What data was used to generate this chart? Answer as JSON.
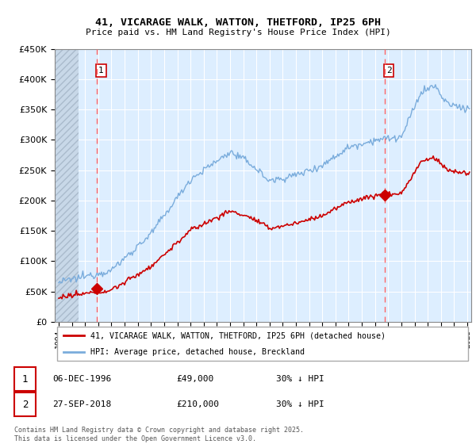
{
  "title_line1": "41, VICARAGE WALK, WATTON, THETFORD, IP25 6PH",
  "title_line2": "Price paid vs. HM Land Registry's House Price Index (HPI)",
  "legend_label1": "41, VICARAGE WALK, WATTON, THETFORD, IP25 6PH (detached house)",
  "legend_label2": "HPI: Average price, detached house, Breckland",
  "sale1_date": "06-DEC-1996",
  "sale1_price": "£49,000",
  "sale1_hpi": "30% ↓ HPI",
  "sale2_date": "27-SEP-2018",
  "sale2_price": "£210,000",
  "sale2_hpi": "30% ↓ HPI",
  "footer": "Contains HM Land Registry data © Crown copyright and database right 2025.\nThis data is licensed under the Open Government Licence v3.0.",
  "sale1_year": 1996.92,
  "sale2_year": 2018.75,
  "sale1_price_val": 49000,
  "sale2_price_val": 210000,
  "red_color": "#cc0000",
  "blue_color": "#7aacdc",
  "vline_color": "#ff6666",
  "bg_color": "#ddeeff",
  "hatch_color": "#bbccdd",
  "ylim": [
    0,
    450000
  ],
  "xlim_start": 1993.7,
  "xlim_end": 2025.3
}
